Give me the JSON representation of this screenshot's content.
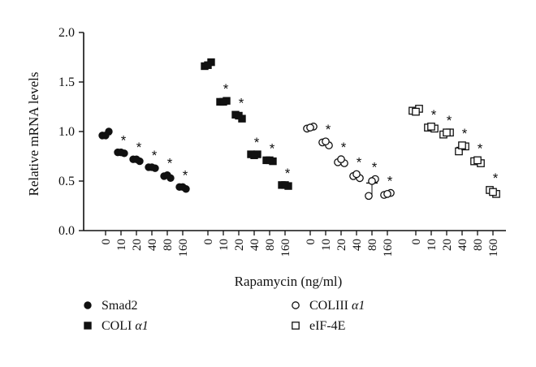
{
  "chart_data": {
    "type": "scatter",
    "xlabel": "Rapamycin (ng/ml)",
    "ylabel": "Relative mRNA levels",
    "ylim": [
      0.0,
      2.0
    ],
    "yticks": [
      "0.0",
      "0.5",
      "1.0",
      "1.5",
      "2.0"
    ],
    "categories": [
      "0",
      "10",
      "20",
      "40",
      "80",
      "160"
    ],
    "significance_marker": "*",
    "legend_position": "bottom",
    "series": [
      {
        "name": "Smad2",
        "marker": "filled-circle",
        "values": [
          0.97,
          0.79,
          0.72,
          0.64,
          0.55,
          0.44
        ],
        "points": [
          [
            0.96,
            1.0,
            0.96
          ],
          [
            0.79,
            0.78,
            0.79
          ],
          [
            0.72,
            0.7,
            0.72
          ],
          [
            0.64,
            0.63,
            0.64
          ],
          [
            0.55,
            0.53,
            0.56
          ],
          [
            0.44,
            0.42,
            0.44
          ]
        ],
        "significant": [
          false,
          true,
          true,
          true,
          true,
          true
        ]
      },
      {
        "name": "COLI α1",
        "legend_parts": [
          "COLI ",
          "α1"
        ],
        "marker": "filled-square",
        "values": [
          1.68,
          1.3,
          1.15,
          0.77,
          0.71,
          0.46
        ],
        "points": [
          [
            1.66,
            1.7,
            1.67
          ],
          [
            1.3,
            1.31,
            1.3
          ],
          [
            1.17,
            1.13,
            1.16
          ],
          [
            0.77,
            0.77,
            0.76
          ],
          [
            0.71,
            0.7,
            0.71
          ],
          [
            0.46,
            0.45,
            0.46
          ]
        ],
        "significant": [
          false,
          true,
          true,
          true,
          true,
          true
        ]
      },
      {
        "name": "COLIII α1",
        "legend_parts": [
          "COLIII ",
          "α1"
        ],
        "marker": "open-circle",
        "values": [
          1.04,
          0.89,
          0.69,
          0.55,
          0.48,
          0.37
        ],
        "points": [
          [
            1.03,
            1.05,
            1.04
          ],
          [
            0.89,
            0.86,
            0.9
          ],
          [
            0.69,
            0.68,
            0.72
          ],
          [
            0.55,
            0.53,
            0.57
          ],
          [
            0.35,
            0.52,
            0.5
          ],
          [
            0.36,
            0.38,
            0.37
          ]
        ],
        "significant": [
          false,
          true,
          true,
          true,
          true,
          true
        ]
      },
      {
        "name": "eIF-4E",
        "marker": "open-square",
        "values": [
          1.21,
          1.04,
          0.98,
          0.84,
          0.7,
          0.39
        ],
        "points": [
          [
            1.21,
            1.23,
            1.2
          ],
          [
            1.04,
            1.03,
            1.05
          ],
          [
            0.97,
            0.99,
            0.99
          ],
          [
            0.8,
            0.85,
            0.86
          ],
          [
            0.7,
            0.68,
            0.71
          ],
          [
            0.41,
            0.37,
            0.39
          ]
        ],
        "significant": [
          false,
          true,
          true,
          true,
          true,
          true
        ]
      }
    ]
  }
}
